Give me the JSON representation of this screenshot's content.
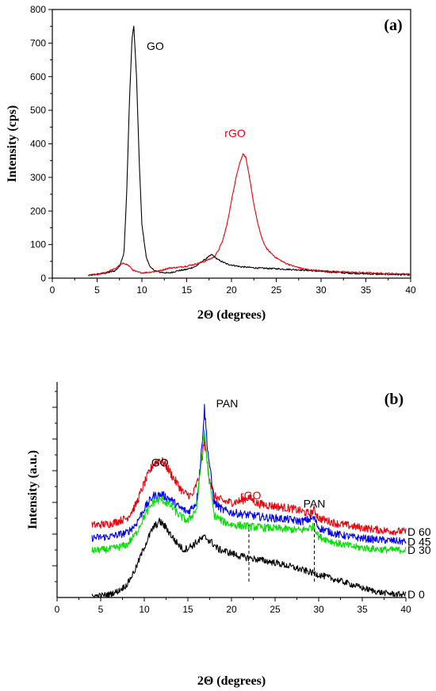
{
  "chart_data": [
    {
      "panel": "(a)",
      "type": "line",
      "xlabel": "2Θ (degrees)",
      "ylabel": "Intensity (cps)",
      "xlim": [
        0,
        40
      ],
      "ylim": [
        0,
        800
      ],
      "x_ticks": [
        0,
        5,
        10,
        15,
        20,
        25,
        30,
        35,
        40
      ],
      "y_ticks": [
        0,
        100,
        200,
        300,
        400,
        500,
        600,
        700,
        800
      ],
      "grid": false,
      "annotations": [
        {
          "text": "GO",
          "x": 11.5,
          "y": 680,
          "color": "#000000"
        },
        {
          "text": "rGO",
          "x": 20.4,
          "y": 420,
          "color": "#e8000b"
        }
      ],
      "series": [
        {
          "name": "GO",
          "color": "#000000",
          "x": [
            4,
            5,
            6,
            7,
            7.5,
            8,
            8.3,
            8.6,
            8.9,
            9.1,
            9.4,
            9.7,
            10,
            10.5,
            11,
            11.5,
            12,
            13,
            14,
            15,
            16,
            17,
            17.8,
            18.5,
            19.5,
            21,
            23,
            25,
            28,
            30,
            33,
            36,
            40
          ],
          "y": [
            8,
            12,
            15,
            22,
            35,
            75,
            250,
            520,
            715,
            750,
            600,
            350,
            160,
            60,
            30,
            22,
            18,
            15,
            22,
            26,
            35,
            55,
            70,
            55,
            42,
            34,
            30,
            28,
            24,
            20,
            15,
            12,
            10
          ]
        },
        {
          "name": "rGO",
          "color": "#e8000b",
          "x": [
            4,
            5,
            6,
            7,
            7.5,
            8,
            8.5,
            9,
            9.5,
            10,
            11,
            12,
            13,
            14,
            15,
            16,
            17,
            18,
            18.5,
            19,
            19.5,
            20,
            20.5,
            21,
            21.3,
            21.6,
            22,
            22.5,
            23,
            23.5,
            24,
            25,
            26,
            27,
            28,
            29,
            30,
            33,
            36,
            40
          ],
          "y": [
            8,
            10,
            18,
            28,
            38,
            45,
            38,
            24,
            18,
            16,
            18,
            22,
            30,
            32,
            36,
            42,
            50,
            62,
            80,
            110,
            160,
            230,
            300,
            350,
            370,
            360,
            300,
            220,
            155,
            110,
            85,
            60,
            45,
            35,
            28,
            24,
            22,
            18,
            15,
            12
          ]
        }
      ]
    },
    {
      "panel": "(b)",
      "type": "line",
      "xlabel": "2Θ (degrees)",
      "ylabel": "Intensity (a.u.)",
      "xlim": [
        0,
        40
      ],
      "ylim": [
        0,
        340
      ],
      "x_ticks": [
        0,
        5,
        10,
        15,
        20,
        25,
        30,
        35,
        40
      ],
      "y_tick_labels": false,
      "grid": false,
      "reference_lines": [
        {
          "x": 22,
          "y_range": [
            25,
            115
          ],
          "style": "dashed",
          "color": "#000000"
        },
        {
          "x": 29.5,
          "y_range": [
            25,
            118
          ],
          "style": "dashed",
          "color": "#000000"
        }
      ],
      "annotations": [
        {
          "text": "GO",
          "x": 11.8,
          "y": 207,
          "color": "#000000"
        },
        {
          "text": "PAN",
          "x": 19.5,
          "y": 300,
          "color": "#000000"
        },
        {
          "text": "rGO",
          "x": 22.2,
          "y": 155,
          "color": "#e8000b"
        },
        {
          "text": "PAN",
          "x": 29.5,
          "y": 142,
          "color": "#000000"
        }
      ],
      "series": [
        {
          "name": "D 60",
          "color": "#e8000b",
          "x": [
            4,
            6,
            8,
            9,
            10,
            11,
            11.8,
            12.5,
            13.5,
            14.5,
            15.5,
            16.3,
            16.9,
            17.4,
            18,
            19,
            20,
            21,
            22,
            23,
            25,
            27,
            29,
            29.5,
            30,
            32,
            34,
            36,
            38,
            40
          ],
          "y": [
            114,
            116,
            125,
            145,
            180,
            210,
            218,
            208,
            185,
            165,
            160,
            190,
            247,
            195,
            160,
            152,
            150,
            152,
            158,
            148,
            144,
            140,
            132,
            138,
            125,
            117,
            112,
            108,
            105,
            104
          ]
        },
        {
          "name": "D 45",
          "color": "#0000ff",
          "x": [
            4,
            6,
            8,
            9,
            10,
            11,
            12,
            13,
            14,
            15,
            16,
            16.5,
            16.9,
            17.3,
            18,
            19,
            20,
            22,
            24,
            26,
            28,
            29.5,
            30,
            32,
            34,
            36,
            38,
            40
          ],
          "y": [
            94,
            96,
            102,
            115,
            140,
            160,
            162,
            155,
            142,
            135,
            150,
            220,
            298,
            230,
            150,
            138,
            134,
            130,
            126,
            124,
            120,
            125,
            110,
            100,
            95,
            92,
            90,
            88
          ]
        },
        {
          "name": "D 30",
          "color": "#00e000",
          "x": [
            4,
            6,
            8,
            9,
            10,
            11,
            12,
            13,
            14,
            15,
            16,
            16.5,
            16.9,
            17.3,
            18,
            19,
            20,
            22,
            24,
            26,
            28,
            29.5,
            30,
            32,
            34,
            36,
            38,
            40
          ],
          "y": [
            74,
            76,
            83,
            100,
            128,
            150,
            155,
            145,
            130,
            120,
            140,
            210,
            262,
            200,
            130,
            120,
            115,
            112,
            110,
            108,
            106,
            112,
            96,
            86,
            80,
            77,
            75,
            75
          ]
        },
        {
          "name": "D 0",
          "color": "#000000",
          "x": [
            4,
            5,
            6,
            7,
            8,
            9,
            10,
            11,
            11.8,
            12.5,
            13.5,
            14.5,
            15.5,
            16.5,
            17,
            17.8,
            18.5,
            19.5,
            21,
            23,
            25,
            27,
            29,
            31,
            33,
            35,
            37,
            39,
            40
          ],
          "y": [
            2,
            3,
            5,
            10,
            20,
            45,
            80,
            110,
            120,
            110,
            90,
            75,
            82,
            92,
            95,
            86,
            76,
            72,
            65,
            60,
            55,
            48,
            40,
            32,
            24,
            15,
            8,
            5,
            5
          ]
        }
      ]
    }
  ]
}
